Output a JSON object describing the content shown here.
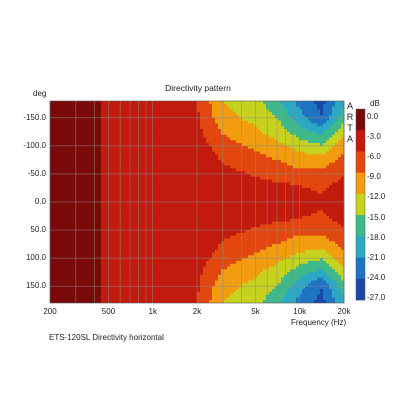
{
  "chart_data": {
    "type": "heatmap",
    "title": "Directivity pattern",
    "xlabel": "Frequency (Hz)",
    "ylabel": "deg",
    "x_scale": "log",
    "xlim": [
      200,
      20000
    ],
    "ylim": [
      -180,
      180
    ],
    "x_ticks": [
      {
        "value": 200,
        "label": "200"
      },
      {
        "value": 500,
        "label": "500"
      },
      {
        "value": 1000,
        "label": "1k"
      },
      {
        "value": 2000,
        "label": "2k"
      },
      {
        "value": 5000,
        "label": "5k"
      },
      {
        "value": 10000,
        "label": "10k"
      },
      {
        "value": 20000,
        "label": "20k"
      }
    ],
    "y_ticks": [
      {
        "value": -150,
        "label": "-150.0"
      },
      {
        "value": -100,
        "label": "-100.0"
      },
      {
        "value": -50,
        "label": "-50.0"
      },
      {
        "value": 0,
        "label": "0.0"
      },
      {
        "value": 50,
        "label": "50.0"
      },
      {
        "value": 100,
        "label": "100.0"
      },
      {
        "value": 150,
        "label": "150.0"
      }
    ],
    "colorbar": {
      "unit": "dB",
      "ticks": [
        "0.0",
        "-3.0",
        "-6.0",
        "-9.0",
        "-12.0",
        "-15.0",
        "-18.0",
        "-21.0",
        "-24.0",
        "-27.0"
      ],
      "colors": [
        "#7a0a0a",
        "#c21b0e",
        "#e2470f",
        "#f29d10",
        "#c6d21e",
        "#3fb88a",
        "#2aa8c4",
        "#1f74c2",
        "#1a48a8"
      ]
    },
    "frequencies_hz": [
      200,
      300,
      500,
      1000,
      2000,
      3000,
      5000,
      7000,
      10000,
      14000,
      20000
    ],
    "angles_deg": [
      -180,
      -150,
      -120,
      -90,
      -60,
      -30,
      0,
      30,
      60,
      90,
      120,
      150,
      180
    ],
    "levels_db": [
      [
        0,
        0,
        -4,
        -5,
        -6,
        -12,
        -14,
        -17,
        -22,
        -25,
        -19
      ],
      [
        0,
        0,
        -4,
        -4.5,
        -5.5,
        -11,
        -13,
        -15,
        -20,
        -24,
        -16
      ],
      [
        0,
        0,
        -4,
        -4.5,
        -5,
        -9,
        -11,
        -13,
        -16,
        -18,
        -12
      ],
      [
        0,
        0,
        -4,
        -4,
        -4,
        -7,
        -9,
        -10,
        -12,
        -13,
        -9
      ],
      [
        0,
        0,
        -4,
        -4,
        -4,
        -5.5,
        -7,
        -8,
        -9,
        -9,
        -7
      ],
      [
        0,
        0,
        -4,
        -4,
        -4,
        -4,
        -5,
        -5.5,
        -6,
        -6.5,
        -5
      ],
      [
        0,
        0,
        -4,
        -4,
        -4,
        -4,
        -4,
        -4.5,
        -5,
        -5.5,
        -4
      ],
      [
        0,
        0,
        -4,
        -4,
        -4,
        -4,
        -5,
        -5.5,
        -6,
        -6.5,
        -5
      ],
      [
        0,
        0,
        -4,
        -4,
        -4,
        -5.5,
        -7,
        -8,
        -9,
        -9,
        -7
      ],
      [
        0,
        0,
        -4,
        -4,
        -4,
        -7,
        -9,
        -10,
        -12,
        -13,
        -9
      ],
      [
        0,
        0,
        -4,
        -4.5,
        -5,
        -9,
        -11,
        -13,
        -16,
        -18,
        -12
      ],
      [
        0,
        0,
        -4,
        -4.5,
        -5.5,
        -11,
        -13,
        -15,
        -20,
        -24,
        -16
      ],
      [
        0,
        0,
        -4,
        -5,
        -6,
        -12,
        -14,
        -17,
        -22,
        -25,
        -19
      ]
    ]
  },
  "watermark": "ARTA",
  "caption": "ETS-120SL  Directivity horizontal"
}
